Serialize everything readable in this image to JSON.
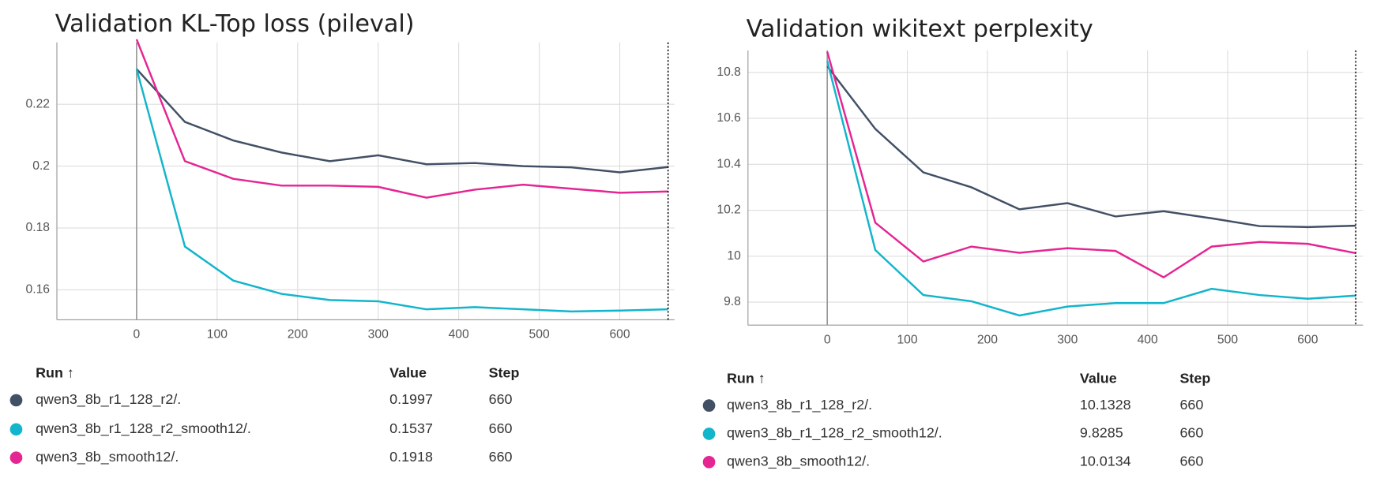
{
  "chart_data": [
    {
      "type": "line",
      "title": "Validation KL-Top loss (pileval)",
      "x": [
        0,
        60,
        120,
        180,
        240,
        300,
        360,
        420,
        480,
        540,
        600,
        660
      ],
      "xlim": [
        -99,
        668
      ],
      "xticks": [
        0,
        100,
        200,
        300,
        400,
        500,
        600
      ],
      "ylim": [
        0.1503,
        0.24
      ],
      "yticks": [
        0.16,
        0.18,
        0.2,
        0.22
      ],
      "grid": true,
      "series": [
        {
          "name": "qwen3_8b_r1_128_r2/.",
          "color": "#425066",
          "values": [
            0.2314,
            0.2143,
            0.2083,
            0.2044,
            0.2016,
            0.2035,
            0.2006,
            0.201,
            0.2,
            0.1996,
            0.198,
            0.1997
          ]
        },
        {
          "name": "qwen3_8b_r1_128_r2_smooth12/.",
          "color": "#12b5cb",
          "values": [
            0.2314,
            0.174,
            0.163,
            0.1587,
            0.1567,
            0.1563,
            0.1537,
            0.1544,
            0.1537,
            0.153,
            0.1533,
            0.1537
          ]
        },
        {
          "name": "qwen3_8b_smooth12/.",
          "color": "#e52592",
          "values": [
            0.241,
            0.2016,
            0.1959,
            0.1937,
            0.1937,
            0.1933,
            0.1898,
            0.1924,
            0.194,
            0.1927,
            0.1914,
            0.1918
          ]
        }
      ],
      "table_headers": [
        "Run ↑",
        "Value",
        "Step"
      ]
    },
    {
      "type": "line",
      "title": "Validation wikitext perplexity",
      "x": [
        0,
        60,
        120,
        180,
        240,
        300,
        360,
        420,
        480,
        540,
        600,
        660
      ],
      "xlim": [
        -99,
        669
      ],
      "xticks": [
        0,
        100,
        200,
        300,
        400,
        500,
        600
      ],
      "ylim": [
        9.7,
        10.896
      ],
      "yticks": [
        9.8,
        10,
        10.2,
        10.4,
        10.6,
        10.8
      ],
      "grid": true,
      "series": [
        {
          "name": "qwen3_8b_r1_128_r2/.",
          "color": "#425066",
          "values": [
            10.827,
            10.554,
            10.365,
            10.3,
            10.204,
            10.231,
            10.173,
            10.196,
            10.165,
            10.131,
            10.127,
            10.1328
          ]
        },
        {
          "name": "qwen3_8b_r1_128_r2_smooth12/.",
          "color": "#12b5cb",
          "values": [
            10.85,
            10.027,
            9.831,
            9.804,
            9.742,
            9.781,
            9.796,
            9.796,
            9.858,
            9.831,
            9.815,
            9.8285
          ]
        },
        {
          "name": "qwen3_8b_smooth12/.",
          "color": "#e52592",
          "values": [
            10.89,
            10.146,
            9.977,
            10.042,
            10.015,
            10.035,
            10.023,
            9.908,
            10.042,
            10.062,
            10.054,
            10.0134
          ]
        }
      ],
      "table_headers": [
        "Run ↑",
        "Value",
        "Step"
      ]
    }
  ]
}
